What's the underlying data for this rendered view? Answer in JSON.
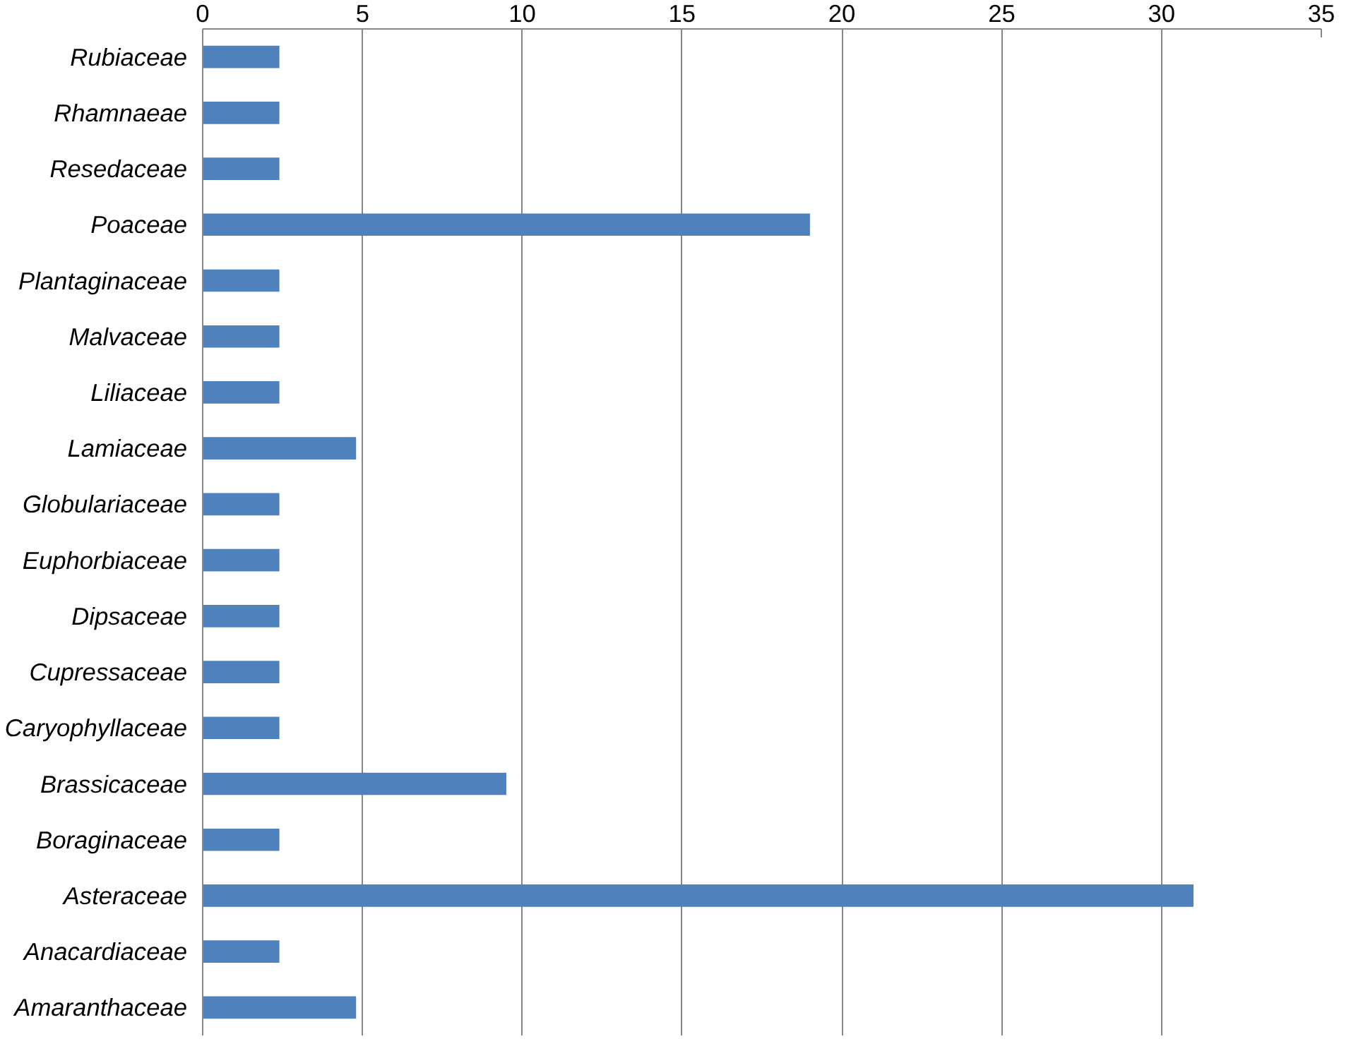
{
  "chart_data": {
    "type": "bar",
    "orientation": "horizontal",
    "categories": [
      "Rubiaceae",
      "Rhamnaeae",
      "Resedaceae",
      "Poaceae",
      "Plantaginaceae",
      "Malvaceae",
      "Liliaceae",
      "Lamiaceae",
      "Globulariaceae",
      "Euphorbiaceae",
      "Dipsaceae",
      "Cupressaceae",
      "Caryophyllaceae",
      "Brassicaceae",
      "Boraginaceae",
      "Asteraceae",
      "Anacardiaceae",
      "Amaranthaceae"
    ],
    "values": [
      2.4,
      2.4,
      2.4,
      19.0,
      2.4,
      2.4,
      2.4,
      4.8,
      2.4,
      2.4,
      2.4,
      2.4,
      2.4,
      9.5,
      2.4,
      31.0,
      2.4,
      4.8
    ],
    "color": "#4f81bd",
    "xlim": [
      0,
      35
    ],
    "xticks": [
      0,
      5,
      10,
      15,
      20,
      25,
      30,
      35
    ],
    "grid": "x"
  }
}
